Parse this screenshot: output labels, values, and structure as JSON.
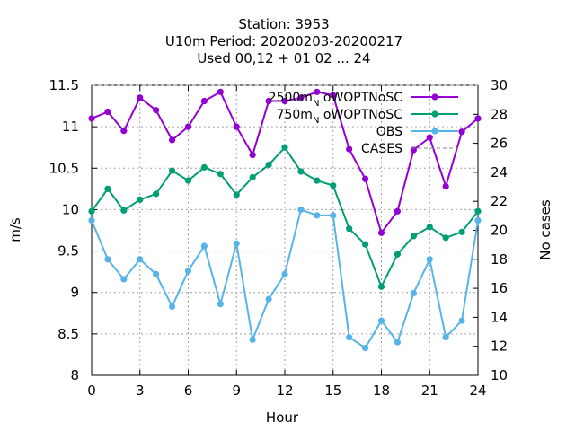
{
  "chart_data": {
    "type": "line",
    "title_lines": [
      "Station:     3953",
      "U10m   Period: 20200203-20200217",
      "Used  00,12  + 01 02 ... 24"
    ],
    "xlabel": "Hour",
    "ylabel": "m/s",
    "y2label": "No cases",
    "xlim": [
      0,
      24
    ],
    "ylim": [
      8,
      11.5
    ],
    "y2lim": [
      10,
      30
    ],
    "xticks": [
      0,
      3,
      6,
      9,
      12,
      15,
      18,
      21,
      24
    ],
    "yticks": [
      8,
      8.5,
      9,
      9.5,
      10,
      10.5,
      11,
      11.5
    ],
    "y2ticks": [
      10,
      12,
      14,
      16,
      18,
      20,
      22,
      24,
      26,
      28,
      30
    ],
    "grid": true,
    "legend_position": "top-right",
    "x": [
      0,
      1,
      2,
      3,
      4,
      5,
      6,
      7,
      8,
      9,
      10,
      11,
      12,
      13,
      14,
      15,
      16,
      17,
      18,
      19,
      20,
      21,
      22,
      23,
      24
    ],
    "series": [
      {
        "name": "2500m_N oWOPTNoSC",
        "legend_main": "2500m",
        "legend_sub": "N",
        "legend_tail": "oWOPTNoSC",
        "color": "#9400d3",
        "values": [
          11.1,
          11.18,
          10.95,
          11.35,
          11.2,
          10.84,
          11.0,
          11.31,
          11.42,
          11.0,
          10.66,
          11.31,
          11.31,
          11.35,
          11.42,
          11.38,
          10.73,
          10.37,
          9.72,
          9.98,
          10.72,
          10.87,
          10.28,
          10.94,
          11.1
        ]
      },
      {
        "name": "750m_N oWOPTNoSC",
        "legend_main": "750m",
        "legend_sub": "N",
        "legend_tail": "oWOPTNoSC",
        "color": "#009e73",
        "values": [
          9.98,
          10.25,
          9.99,
          10.12,
          10.19,
          10.47,
          10.35,
          10.51,
          10.43,
          10.18,
          10.39,
          10.54,
          10.75,
          10.46,
          10.35,
          10.29,
          9.77,
          9.58,
          9.07,
          9.46,
          9.68,
          9.79,
          9.66,
          9.73,
          9.98
        ]
      },
      {
        "name": "OBS",
        "legend_main": "OBS",
        "legend_sub": "",
        "legend_tail": "",
        "color": "#56b4e9",
        "values": [
          9.87,
          9.4,
          9.16,
          9.4,
          9.22,
          8.83,
          9.26,
          9.56,
          8.86,
          9.59,
          8.43,
          8.92,
          9.22,
          10.0,
          9.93,
          9.93,
          8.46,
          8.33,
          8.66,
          8.4,
          8.99,
          9.4,
          8.46,
          8.66,
          9.87
        ]
      }
    ],
    "cases_series": {
      "name": "CASES",
      "color": "#888888",
      "values": [
        30,
        30,
        30,
        30,
        30,
        30,
        30,
        30,
        30,
        30,
        30,
        30,
        30,
        30,
        30,
        30,
        30,
        30,
        30,
        30,
        30,
        30,
        30,
        30,
        30
      ]
    }
  }
}
